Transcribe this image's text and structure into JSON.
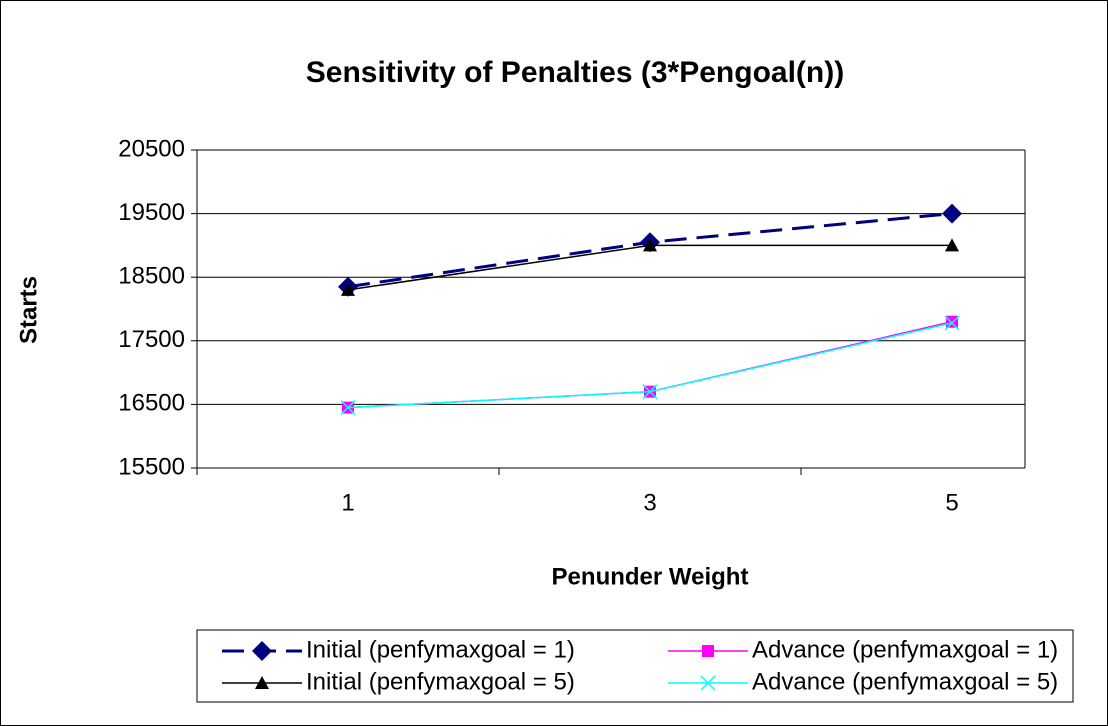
{
  "chart_data": {
    "type": "line",
    "title": "Sensitivity of Penalties (3*Pengoal(n))",
    "x_label": "Penunder Weight",
    "y_label": "Starts",
    "categories": [
      "1",
      "3",
      "5"
    ],
    "ylim": [
      15500,
      20500
    ],
    "yticks": [
      15500,
      16500,
      17500,
      18500,
      19500,
      20500
    ],
    "grid": true,
    "legend": "bottom",
    "series": [
      {
        "name": "Initial (penfymaxgoal = 1)",
        "color": "#000080",
        "marker": "diamond",
        "dash": true,
        "values": [
          18350,
          19050,
          19500
        ]
      },
      {
        "name": "Advance (penfymaxgoal = 1)",
        "color": "#ff00ff",
        "marker": "square",
        "dash": false,
        "values": [
          16450,
          16700,
          17800
        ]
      },
      {
        "name": "Initial (penfymaxgoal = 5)",
        "color": "#000000",
        "marker": "triangle",
        "dash": false,
        "values": [
          18300,
          19000,
          19000
        ]
      },
      {
        "name": "Advance (penfymaxgoal = 5)",
        "color": "#00ffff",
        "marker": "x",
        "dash": false,
        "values": [
          16450,
          16700,
          17780
        ]
      }
    ]
  }
}
